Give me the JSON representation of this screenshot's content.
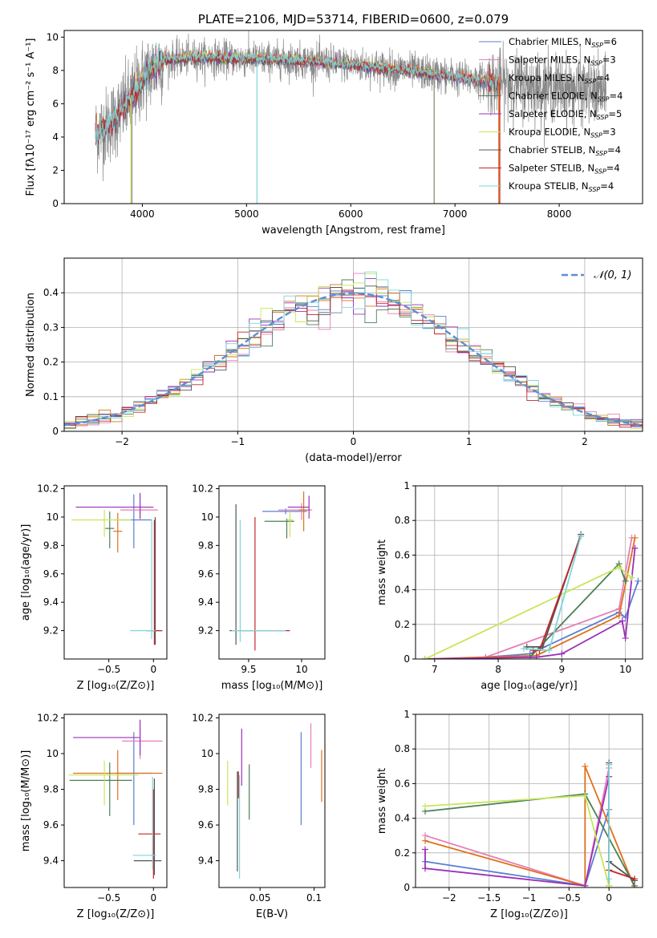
{
  "colors": {
    "Chabrier MILES": "#5b7fd3",
    "Salpeter MILES": "#e57fb7",
    "Kroupa MILES": "#e0701c",
    "Chabrier ELODIE": "#4a8055",
    "Salpeter ELODIE": "#9b30b8",
    "Kroupa ELODIE": "#c8e65a",
    "Chabrier STELIB": "#555555",
    "Salpeter STELIB": "#c0282c",
    "Kroupa STELIB": "#7fd6d9",
    "obs": "#888888"
  },
  "models": [
    "Chabrier MILES",
    "Salpeter MILES",
    "Kroupa MILES",
    "Chabrier ELODIE",
    "Salpeter ELODIE",
    "Kroupa ELODIE",
    "Chabrier STELIB",
    "Salpeter STELIB",
    "Kroupa STELIB"
  ],
  "chart_data": [
    {
      "id": "spectrum",
      "type": "line",
      "title": "PLATE=2106, MJD=53714, FIBERID=0600, z=0.079",
      "xlabel": "wavelength [Angstrom, rest frame]",
      "ylabel": "Flux [fλ10⁻¹⁷ erg cm⁻² s⁻¹ A⁻¹]",
      "xlim": [
        3250,
        8800
      ],
      "ylim": [
        0,
        10.4
      ],
      "xticks": [
        4000,
        5000,
        6000,
        7000,
        8000
      ],
      "yticks": [
        0,
        2,
        4,
        6,
        8,
        10
      ],
      "legend_position": "right",
      "legend": [
        {
          "model": "Chabrier MILES",
          "label": "Chabrier MILES, N",
          "sub": "SSP",
          "n": "=6"
        },
        {
          "model": "Salpeter MILES",
          "label": "Salpeter MILES, N",
          "sub": "SSP",
          "n": "=3"
        },
        {
          "model": "Kroupa MILES",
          "label": "Kroupa MILES, N",
          "sub": "SSP",
          "n": "=4"
        },
        {
          "model": "Chabrier ELODIE",
          "label": "Chabrier ELODIE, N",
          "sub": "SSP",
          "n": "=4"
        },
        {
          "model": "Salpeter ELODIE",
          "label": "Salpeter ELODIE, N",
          "sub": "SSP",
          "n": "=5"
        },
        {
          "model": "Kroupa ELODIE",
          "label": "Kroupa ELODIE, N",
          "sub": "SSP",
          "n": "=3"
        },
        {
          "model": "Chabrier STELIB",
          "label": "Chabrier STELIB, N",
          "sub": "SSP",
          "n": "=4"
        },
        {
          "model": "Salpeter STELIB",
          "label": "Salpeter STELIB, N",
          "sub": "SSP",
          "n": "=4"
        },
        {
          "model": "Kroupa STELIB",
          "label": "Kroupa STELIB, N",
          "sub": "SSP",
          "n": "=4"
        }
      ],
      "continuum": {
        "x": [
          3550,
          3650,
          3750,
          3900,
          4000,
          4200,
          4500,
          5000,
          5500,
          6000,
          6500,
          7000,
          7500,
          8000,
          8300,
          8450
        ],
        "y": [
          4.2,
          4.6,
          5.2,
          6.4,
          7.5,
          8.6,
          8.8,
          8.7,
          8.6,
          8.35,
          8.05,
          7.6,
          7.2,
          6.95,
          6.75,
          6.6
        ]
      },
      "model_range": [
        3550,
        7430
      ],
      "stelib_range": [
        3550,
        7420
      ],
      "elodie_range": [
        3900,
        6800
      ],
      "obs_range": [
        3550,
        8450
      ],
      "dips": [
        {
          "model": "Kroupa STELIB",
          "x": 5100,
          "y": 0
        },
        {
          "model": "Kroupa ELODIE",
          "x": 3890,
          "y": 0
        },
        {
          "model": "Kroupa ELODIE",
          "x": 6800,
          "y": 0
        },
        {
          "model": "Kroupa MILES",
          "x": 7420,
          "y": 0
        },
        {
          "model": "Salpeter STELIB",
          "x": 7430,
          "y": 0
        },
        {
          "model": "obs",
          "x": 3900,
          "y": 0
        },
        {
          "model": "obs",
          "x": 6800,
          "y": 0
        }
      ]
    },
    {
      "id": "residuals",
      "type": "histogram",
      "xlabel": "(data-model)/error",
      "ylabel": "Normed distribution",
      "xlim": [
        -2.5,
        2.5
      ],
      "ylim": [
        0,
        0.5
      ],
      "xticks": [
        -2,
        -1,
        0,
        1,
        2
      ],
      "yticks": [
        0.0,
        0.1,
        0.2,
        0.3,
        0.4
      ],
      "grid": true,
      "bin_width": 0.1,
      "legend": {
        "label": "𝒩(0, 1)",
        "color": "#5b8fd4",
        "position": "top-right"
      }
    },
    {
      "id": "age_vs_Z",
      "type": "errorbar",
      "xlabel": "Z [log₁₀(Z/Z⊙)]",
      "ylabel": "age  [log₁₀(age/yr)]",
      "xlim": [
        -1.0,
        0.15
      ],
      "ylim": [
        9.0,
        10.22
      ],
      "xticks": [
        -0.5,
        0.0
      ],
      "yticks": [
        9.2,
        9.4,
        9.6,
        9.8,
        10.0,
        10.2
      ],
      "points": [
        {
          "model": "Chabrier MILES",
          "x": -0.22,
          "y": 9.98,
          "xerr": [
            0.22,
            0.2
          ],
          "yerr": [
            0.2,
            0.18
          ]
        },
        {
          "model": "Salpeter MILES",
          "x": -0.15,
          "y": 10.05,
          "xerr": [
            0.22,
            0.2
          ],
          "yerr": [
            0.07,
            0.05
          ]
        },
        {
          "model": "Kroupa MILES",
          "x": -0.4,
          "y": 9.9,
          "xerr": [
            0.05,
            0.05
          ],
          "yerr": [
            0.15,
            0.13
          ]
        },
        {
          "model": "Chabrier ELODIE",
          "x": -0.49,
          "y": 9.92,
          "xerr": [
            0.05,
            0.05
          ],
          "yerr": [
            0.14,
            0.12
          ]
        },
        {
          "model": "Salpeter ELODIE",
          "x": -0.15,
          "y": 10.07,
          "xerr": [
            0.72,
            0.15
          ],
          "yerr": [
            0.08,
            0.1
          ]
        },
        {
          "model": "Kroupa ELODIE",
          "x": -0.55,
          "y": 9.98,
          "xerr": [
            0.37,
            0.3
          ],
          "yerr": [
            0.12,
            0.07
          ]
        },
        {
          "model": "Chabrier STELIB",
          "x": 0.02,
          "y": 9.2,
          "xerr": [
            0.1,
            0.08
          ],
          "yerr": [
            0.1,
            0.8
          ]
        },
        {
          "model": "Salpeter STELIB",
          "x": 0.01,
          "y": 9.2,
          "xerr": [
            0.03,
            0.08
          ],
          "yerr": [
            0.1,
            0.78
          ]
        },
        {
          "model": "Kroupa STELIB",
          "x": -0.02,
          "y": 9.2,
          "xerr": [
            0.24,
            0.04
          ],
          "yerr": [
            0.06,
            0.78
          ]
        }
      ]
    },
    {
      "id": "age_vs_mass",
      "type": "errorbar",
      "xlabel": "mass [log₁₀(M/M⊙)]",
      "ylabel": "",
      "xlim": [
        9.22,
        10.22
      ],
      "ylim": [
        9.0,
        10.22
      ],
      "xticks": [
        9.5,
        10.0
      ],
      "yticks": [
        9.2,
        9.4,
        9.6,
        9.8,
        10.0,
        10.2
      ],
      "points": [
        {
          "model": "Chabrier MILES",
          "x": 9.85,
          "y": 10.04,
          "xerr": [
            0.22,
            0.2
          ],
          "yerr": [
            0.02,
            0.02
          ]
        },
        {
          "model": "Salpeter MILES",
          "x": 10.0,
          "y": 10.05,
          "xerr": [
            0.22,
            0.1
          ],
          "yerr": [
            0.07,
            0.05
          ]
        },
        {
          "model": "Kroupa MILES",
          "x": 10.02,
          "y": 10.05,
          "xerr": [
            0.05,
            0.05
          ],
          "yerr": [
            0.15,
            0.13
          ]
        },
        {
          "model": "Chabrier ELODIE",
          "x": 9.86,
          "y": 9.97,
          "xerr": [
            0.21,
            0.07
          ],
          "yerr": [
            0.12,
            0.02
          ]
        },
        {
          "model": "Salpeter ELODIE",
          "x": 10.07,
          "y": 10.07,
          "xerr": [
            0.2,
            0.0
          ],
          "yerr": [
            0.08,
            0.08
          ]
        },
        {
          "model": "Kroupa ELODIE",
          "x": 9.89,
          "y": 9.98,
          "xerr": [
            0.03,
            0.03
          ],
          "yerr": [
            0.12,
            0.06
          ]
        },
        {
          "model": "Chabrier STELIB",
          "x": 9.38,
          "y": 9.2,
          "xerr": [
            0.06,
            0.0
          ],
          "yerr": [
            0.1,
            0.89
          ]
        },
        {
          "model": "Salpeter STELIB",
          "x": 9.56,
          "y": 9.2,
          "xerr": [
            0.16,
            0.33
          ],
          "yerr": [
            0.14,
            0.8
          ]
        },
        {
          "model": "Kroupa STELIB",
          "x": 9.42,
          "y": 9.2,
          "xerr": [
            0.08,
            0.43
          ],
          "yerr": [
            0.08,
            0.78
          ]
        }
      ]
    },
    {
      "id": "massweight_vs_age",
      "type": "line",
      "xlabel": "age  [log₁₀(age/yr)]",
      "ylabel": "mass weight",
      "xlim": [
        6.7,
        10.27
      ],
      "ylim": [
        0,
        1.0
      ],
      "xticks": [
        7,
        8,
        9,
        10
      ],
      "yticks": [
        0.0,
        0.2,
        0.4,
        0.6,
        0.8,
        1.0
      ],
      "grid": true,
      "series": [
        {
          "model": "Chabrier MILES",
          "x": [
            7.8,
            8.5,
            9.9,
            10.0,
            10.2
          ],
          "y": [
            0.01,
            0.03,
            0.27,
            0.24,
            0.45
          ]
        },
        {
          "model": "Salpeter MILES",
          "x": [
            7.8,
            9.9,
            10.1
          ],
          "y": [
            0.01,
            0.29,
            0.7
          ]
        },
        {
          "model": "Kroupa MILES",
          "x": [
            6.85,
            8.6,
            9.9,
            10.15
          ],
          "y": [
            0.0,
            0.02,
            0.25,
            0.7
          ]
        },
        {
          "model": "Chabrier ELODIE",
          "x": [
            8.5,
            9.9,
            10.0
          ],
          "y": [
            0.01,
            0.55,
            0.45
          ]
        },
        {
          "model": "Salpeter ELODIE",
          "x": [
            6.85,
            8.6,
            9.0,
            9.95,
            10.0,
            10.15
          ],
          "y": [
            0.0,
            0.01,
            0.03,
            0.22,
            0.12,
            0.64
          ]
        },
        {
          "model": "Kroupa ELODIE",
          "x": [
            6.85,
            9.9,
            10.1
          ],
          "y": [
            0.0,
            0.53,
            0.47
          ]
        },
        {
          "model": "Chabrier STELIB",
          "x": [
            8.45,
            8.7,
            9.3
          ],
          "y": [
            0.07,
            0.07,
            0.72
          ]
        },
        {
          "model": "Salpeter STELIB",
          "x": [
            8.55,
            8.65,
            9.3
          ],
          "y": [
            0.05,
            0.05,
            0.71
          ]
        },
        {
          "model": "Kroupa STELIB",
          "x": [
            8.4,
            8.8,
            9.3
          ],
          "y": [
            0.06,
            0.05,
            0.71
          ]
        }
      ]
    },
    {
      "id": "mass_vs_Z",
      "type": "errorbar",
      "xlabel": "Z [log₁₀(Z/Z⊙)]",
      "ylabel": "mass [log₁₀(M/M⊙)]",
      "xlim": [
        -1.0,
        0.15
      ],
      "ylim": [
        9.25,
        10.22
      ],
      "xticks": [
        -0.5,
        0.0
      ],
      "yticks": [
        9.4,
        9.6,
        9.8,
        10.0,
        10.2
      ],
      "points": [
        {
          "model": "Chabrier MILES",
          "x": -0.22,
          "y": 9.89,
          "xerr": [
            0.2,
            0.2
          ],
          "yerr": [
            0.29,
            0.23
          ]
        },
        {
          "model": "Salpeter MILES",
          "x": -0.15,
          "y": 10.07,
          "xerr": [
            0.2,
            0.25
          ],
          "yerr": [
            0.1,
            0.08
          ]
        },
        {
          "model": "Kroupa MILES",
          "x": -0.4,
          "y": 9.89,
          "xerr": [
            0.5,
            0.5
          ],
          "yerr": [
            0.15,
            0.13
          ]
        },
        {
          "model": "Chabrier ELODIE",
          "x": -0.49,
          "y": 9.85,
          "xerr": [
            0.45,
            0.25
          ],
          "yerr": [
            0.2,
            0.1
          ]
        },
        {
          "model": "Salpeter ELODIE",
          "x": -0.15,
          "y": 10.09,
          "xerr": [
            0.75,
            0.0
          ],
          "yerr": [
            0.1,
            0.1
          ]
        },
        {
          "model": "Kroupa ELODIE",
          "x": -0.55,
          "y": 9.88,
          "xerr": [
            0.4,
            0.38
          ],
          "yerr": [
            0.17,
            0.08
          ]
        },
        {
          "model": "Chabrier STELIB",
          "x": 0.01,
          "y": 9.4,
          "xerr": [
            0.23,
            0.08
          ],
          "yerr": [
            0.08,
            0.46
          ]
        },
        {
          "model": "Salpeter STELIB",
          "x": 0.0,
          "y": 9.55,
          "xerr": [
            0.17,
            0.08
          ],
          "yerr": [
            0.25,
            0.25
          ]
        },
        {
          "model": "Kroupa STELIB",
          "x": -0.01,
          "y": 9.43,
          "xerr": [
            0.22,
            0.04
          ],
          "yerr": [
            0.08,
            0.44
          ]
        }
      ]
    },
    {
      "id": "mass_vs_EBV",
      "type": "errorbar",
      "xlabel": "E(B-V)",
      "ylabel": "",
      "xlim": [
        0.012,
        0.11
      ],
      "ylim": [
        9.25,
        10.22
      ],
      "xticks": [
        0.05,
        0.1
      ],
      "yticks": [
        9.4,
        9.6,
        9.8,
        10.0,
        10.2
      ],
      "points": [
        {
          "model": "Chabrier MILES",
          "x": 0.088,
          "y": 9.85,
          "xerr": [
            0,
            0
          ],
          "yerr": [
            0.25,
            0.27
          ]
        },
        {
          "model": "Salpeter MILES",
          "x": 0.097,
          "y": 10.02,
          "xerr": [
            0,
            0
          ],
          "yerr": [
            0.1,
            0.15
          ]
        },
        {
          "model": "Kroupa MILES",
          "x": 0.107,
          "y": 9.88,
          "xerr": [
            0,
            0
          ],
          "yerr": [
            0.15,
            0.14
          ]
        },
        {
          "model": "Chabrier ELODIE",
          "x": 0.04,
          "y": 9.79,
          "xerr": [
            0,
            0
          ],
          "yerr": [
            0.16,
            0.15
          ]
        },
        {
          "model": "Salpeter ELODIE",
          "x": 0.033,
          "y": 9.99,
          "xerr": [
            0,
            0
          ],
          "yerr": [
            0.17,
            0.15
          ]
        },
        {
          "model": "Kroupa ELODIE",
          "x": 0.02,
          "y": 9.84,
          "xerr": [
            0,
            0
          ],
          "yerr": [
            0.13,
            0.12
          ]
        },
        {
          "model": "Chabrier STELIB",
          "x": 0.029,
          "y": 9.62,
          "xerr": [
            0,
            0
          ],
          "yerr": [
            0.28,
            0.28
          ]
        },
        {
          "model": "Salpeter STELIB",
          "x": 0.03,
          "y": 9.8,
          "xerr": [
            0,
            0
          ],
          "yerr": [
            0.05,
            0.1
          ]
        },
        {
          "model": "Kroupa STELIB",
          "x": 0.031,
          "y": 9.62,
          "xerr": [
            0,
            0
          ],
          "yerr": [
            0.32,
            0.26
          ]
        }
      ]
    },
    {
      "id": "massweight_vs_Z",
      "type": "line",
      "xlabel": "Z [log₁₀(Z/Z⊙)]",
      "ylabel": "mass weight",
      "xlim": [
        -2.42,
        0.42
      ],
      "ylim": [
        0,
        1.0
      ],
      "xticks": [
        -2.0,
        -1.5,
        -1.0,
        -0.5,
        0.0
      ],
      "yticks": [
        0.0,
        0.2,
        0.4,
        0.6,
        0.8,
        1.0
      ],
      "grid": true,
      "series": [
        {
          "model": "Chabrier MILES",
          "x": [
            -2.3,
            -0.3,
            0.0,
            0.0
          ],
          "y": [
            0.15,
            0.01,
            0.45,
            0.01
          ]
        },
        {
          "model": "Salpeter MILES",
          "x": [
            -2.3,
            -0.3,
            0.0
          ],
          "y": [
            0.3,
            0.01,
            0.69
          ]
        },
        {
          "model": "Kroupa MILES",
          "x": [
            -2.3,
            -0.3,
            -0.3,
            0.32
          ],
          "y": [
            0.27,
            0.01,
            0.7,
            0.0
          ]
        },
        {
          "model": "Chabrier ELODIE",
          "x": [
            -2.3,
            -0.3,
            0.32
          ],
          "y": [
            0.44,
            0.54,
            0.01
          ]
        },
        {
          "model": "Salpeter ELODIE",
          "x": [
            -2.3,
            -2.3,
            -0.3,
            0.0
          ],
          "y": [
            0.22,
            0.11,
            0.01,
            0.64
          ]
        },
        {
          "model": "Kroupa ELODIE",
          "x": [
            -2.3,
            -0.3,
            0.0
          ],
          "y": [
            0.47,
            0.53,
            0.01
          ]
        },
        {
          "model": "Chabrier STELIB",
          "x": [
            0.0,
            0.0,
            0.32
          ],
          "y": [
            0.72,
            0.15,
            0.04
          ]
        },
        {
          "model": "Salpeter STELIB",
          "x": [
            0.0,
            0.0,
            0.32
          ],
          "y": [
            0.71,
            0.1,
            0.05
          ]
        },
        {
          "model": "Kroupa STELIB",
          "x": [
            0.0,
            0.0
          ],
          "y": [
            0.71,
            0.05
          ]
        }
      ]
    }
  ]
}
